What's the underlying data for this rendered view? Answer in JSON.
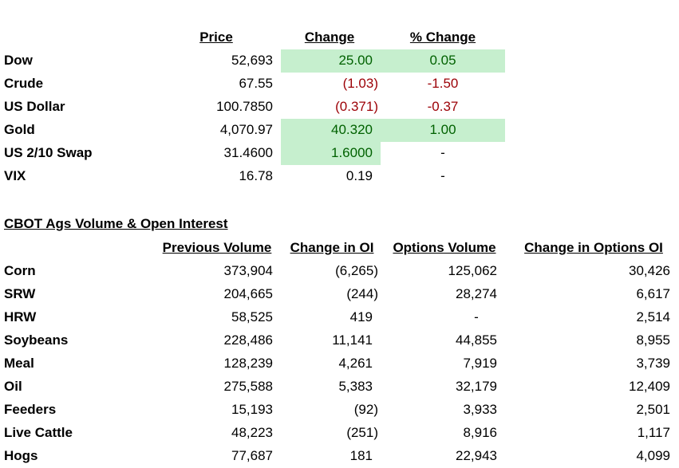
{
  "market_table": {
    "headers": [
      "Price",
      "Change",
      "% Change"
    ],
    "rows": [
      [
        "Dow",
        "52,693",
        "25.00",
        "0.05"
      ],
      [
        "Crude",
        "67.55",
        "(1.03)",
        "-1.50"
      ],
      [
        "US Dollar",
        "100.7850",
        "(0.371)",
        "-0.37"
      ],
      [
        "Gold",
        "4,070.97",
        "40.320",
        "1.00"
      ],
      [
        "US 2/10 Swap",
        "31.4600",
        "1.6000",
        "-"
      ],
      [
        "VIX",
        "16.78",
        "0.19",
        "-"
      ]
    ]
  },
  "cbot_table": {
    "title": "CBOT Ags Volume & Open Interest",
    "headers": [
      "Previous Volume",
      "Change in OI",
      "Options Volume",
      "Change in Options OI"
    ],
    "rows": [
      [
        "Corn",
        "373,904",
        "(6,265)",
        "125,062",
        "30,426"
      ],
      [
        "SRW",
        "204,665",
        "(244)",
        "28,274",
        "6,617"
      ],
      [
        "HRW",
        "58,525",
        "419",
        "-",
        "2,514"
      ],
      [
        "Soybeans",
        "228,486",
        "11,141",
        "44,855",
        "8,955"
      ],
      [
        "Meal",
        "128,239",
        "4,261",
        "7,919",
        "3,739"
      ],
      [
        "Oil",
        "275,588",
        "5,383",
        "32,179",
        "12,409"
      ],
      [
        "Feeders",
        "15,193",
        "(92)",
        "3,933",
        "2,501"
      ],
      [
        "Live Cattle",
        "48,223",
        "(251)",
        "8,916",
        "1,117"
      ],
      [
        "Hogs",
        "77,687",
        "181",
        "22,943",
        "4,099"
      ]
    ]
  }
}
